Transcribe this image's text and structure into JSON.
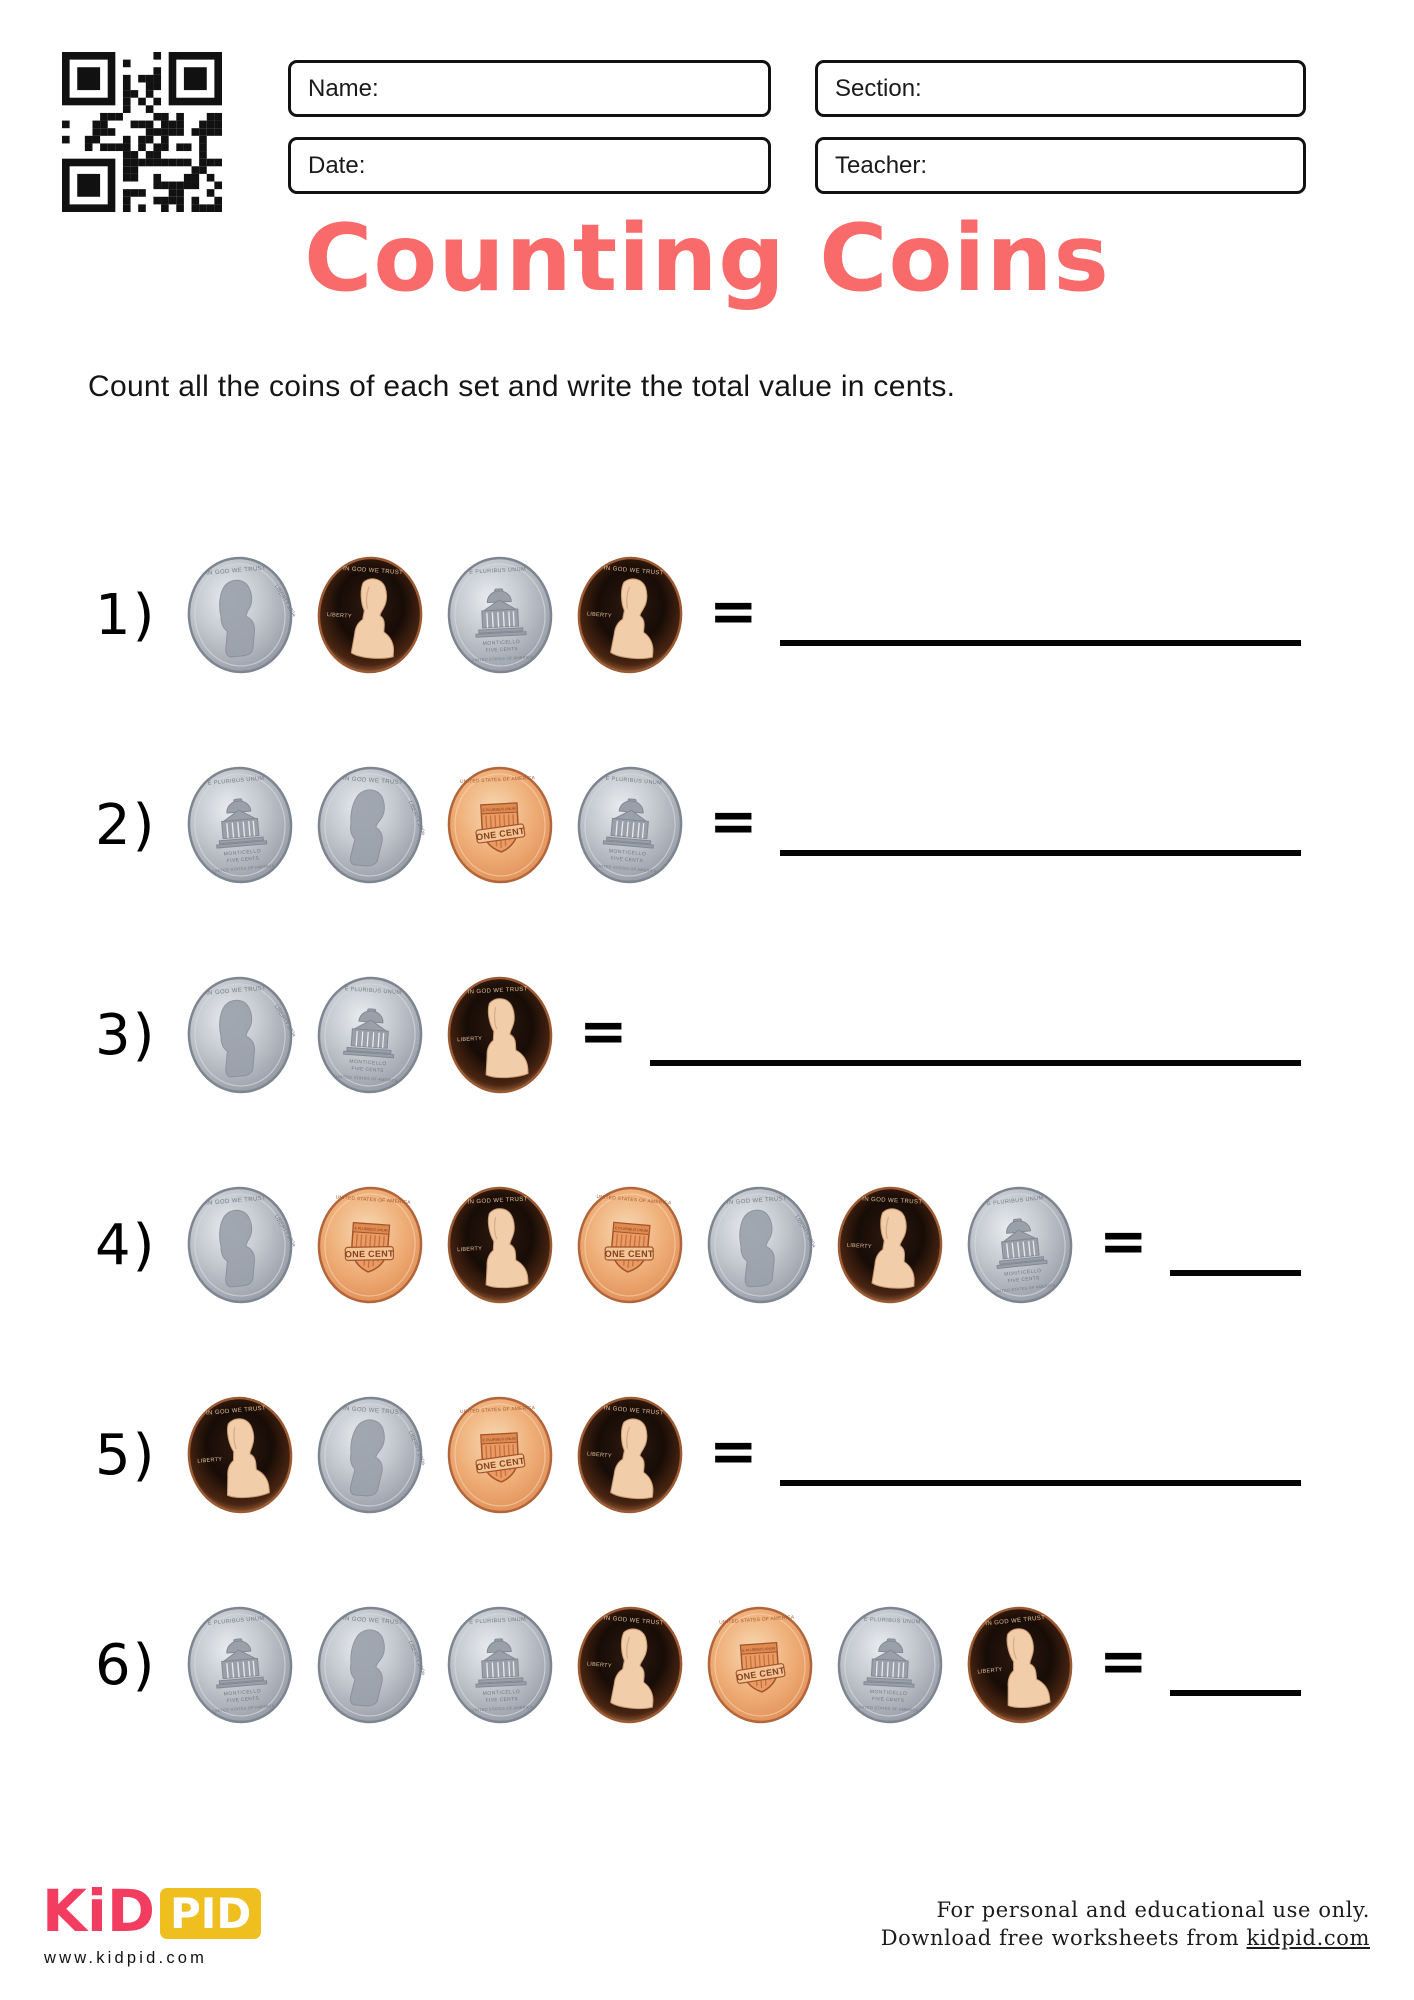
{
  "title": "Counting Coins",
  "instructions": "Count all the coins of each set and write the total value in cents.",
  "equals_sign": "=",
  "form": {
    "fields": [
      {
        "id": "name",
        "label": "Name:"
      },
      {
        "id": "section",
        "label": "Section:"
      },
      {
        "id": "date",
        "label": "Date:"
      },
      {
        "id": "teacher",
        "label": "Teacher:"
      }
    ]
  },
  "rows": [
    {
      "number": "1)",
      "coins": [
        "nickel-obverse",
        "penny-obverse",
        "nickel-reverse",
        "penny-obverse"
      ],
      "answer": ""
    },
    {
      "number": "2)",
      "coins": [
        "nickel-reverse",
        "nickel-obverse",
        "penny-reverse",
        "nickel-reverse"
      ],
      "answer": ""
    },
    {
      "number": "3)",
      "coins": [
        "nickel-obverse",
        "nickel-reverse",
        "penny-obverse"
      ],
      "answer": ""
    },
    {
      "number": "4)",
      "coins": [
        "nickel-obverse",
        "penny-reverse",
        "penny-obverse",
        "penny-reverse",
        "nickel-obverse",
        "penny-obverse",
        "nickel-reverse"
      ],
      "answer": ""
    },
    {
      "number": "5)",
      "coins": [
        "penny-obverse",
        "nickel-obverse",
        "penny-reverse",
        "penny-obverse"
      ],
      "answer": ""
    },
    {
      "number": "6)",
      "coins": [
        "nickel-reverse",
        "nickel-obverse",
        "nickel-reverse",
        "penny-obverse",
        "penny-reverse",
        "nickel-reverse",
        "penny-obverse"
      ],
      "answer": ""
    }
  ],
  "coin_labels": {
    "nickel_obverse": {
      "top": "IN GOD WE TRUST",
      "right": "LIBERTY 2004"
    },
    "nickel_reverse": {
      "top": "E PLURIBUS UNUM",
      "building": "MONTICELLO",
      "denom": "FIVE CENTS",
      "bottom": "UNITED STATES OF AMERICA"
    },
    "penny_obverse": {
      "top": "IN GOD WE TRUST",
      "left": "LIBERTY"
    },
    "penny_reverse": {
      "top": "UNITED STATES OF AMERICA",
      "shield": "E PLURIBUS UNUM",
      "banner": "ONE CENT"
    }
  },
  "logo": {
    "kid": "KiD",
    "pid": "PID",
    "url": "www.kidpid.com"
  },
  "footer": {
    "line1": "For personal and educational use only.",
    "line2_prefix": "Download free worksheets from ",
    "link": "kidpid.com"
  },
  "colors": {
    "title": "#F96B6B",
    "logo_pink": "#F23D61",
    "logo_yellow": "#EFBF1F"
  }
}
